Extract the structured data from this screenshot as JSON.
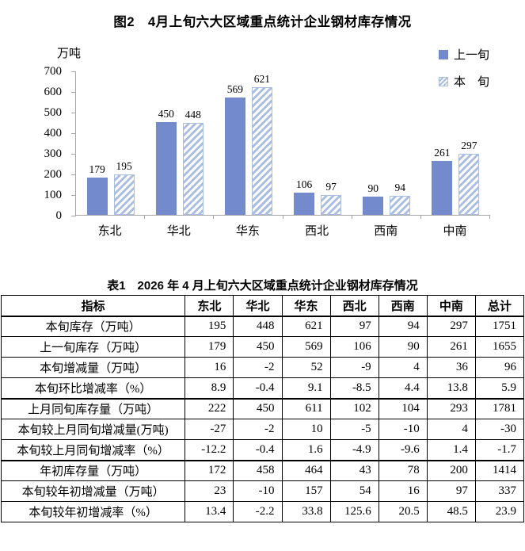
{
  "chart": {
    "title": "图2　4月上旬六大区域重点统计企业钢材库存情况",
    "unit_label": "万吨",
    "axis_color": "#a6a6a6",
    "bar_color": "#738acd",
    "hatch_color": "#a9bde1",
    "legend": [
      {
        "label": "上一旬",
        "swatch": "solid"
      },
      {
        "label": "本　旬",
        "swatch": "hatch"
      }
    ]
  },
  "chart_data": {
    "type": "bar",
    "title": "图2　4月上旬六大区域重点统计企业钢材库存情况",
    "categories": [
      "东北",
      "华北",
      "华东",
      "西北",
      "西南",
      "中南"
    ],
    "series": [
      {
        "name": "上一旬",
        "values": [
          179,
          450,
          569,
          106,
          90,
          261
        ]
      },
      {
        "name": "本旬",
        "values": [
          195,
          448,
          621,
          97,
          94,
          297
        ]
      }
    ],
    "xlabel": "",
    "ylabel": "万吨",
    "ylim": [
      0,
      700
    ],
    "ytick_step": 100,
    "grid": false,
    "legend_position": "top-right",
    "data_labels": true
  },
  "table": {
    "title": "表1　2026 年 4 月上旬六大区域重点统计企业钢材库存情况",
    "columns": [
      "指标",
      "东北",
      "华北",
      "华东",
      "西北",
      "西南",
      "中南",
      "总计"
    ],
    "rows": [
      {
        "label": "本旬库存（万吨）",
        "values": [
          "195",
          "448",
          "621",
          "97",
          "94",
          "297",
          "1751"
        ],
        "section_end": false
      },
      {
        "label": "上一旬库存（万吨）",
        "values": [
          "179",
          "450",
          "569",
          "106",
          "90",
          "261",
          "1655"
        ],
        "section_end": false
      },
      {
        "label": "本旬增减量（万吨）",
        "values": [
          "16",
          "-2",
          "52",
          "-9",
          "4",
          "36",
          "96"
        ],
        "section_end": false
      },
      {
        "label": "本旬环比增减率（%）",
        "values": [
          "8.9",
          "-0.4",
          "9.1",
          "-8.5",
          "4.4",
          "13.8",
          "5.9"
        ],
        "section_end": true
      },
      {
        "label": "上月同旬库存量（万吨）",
        "values": [
          "222",
          "450",
          "611",
          "102",
          "104",
          "293",
          "1781"
        ],
        "section_end": false
      },
      {
        "label": "本旬较上月同旬增减量(万吨)",
        "values": [
          "-27",
          "-2",
          "10",
          "-5",
          "-10",
          "4",
          "-30"
        ],
        "section_end": false
      },
      {
        "label": "本旬较上月同旬增减率（%）",
        "values": [
          "-12.2",
          "-0.4",
          "1.6",
          "-4.9",
          "-9.6",
          "1.4",
          "-1.7"
        ],
        "section_end": true
      },
      {
        "label": "年初库存量（万吨）",
        "values": [
          "172",
          "458",
          "464",
          "43",
          "78",
          "200",
          "1414"
        ],
        "section_end": false
      },
      {
        "label": "本旬较年初增减量（万吨）",
        "values": [
          "23",
          "-10",
          "157",
          "54",
          "16",
          "97",
          "337"
        ],
        "section_end": false
      },
      {
        "label": "本旬较年初增减率（%）",
        "values": [
          "13.4",
          "-2.2",
          "33.8",
          "125.6",
          "20.5",
          "48.5",
          "23.9"
        ],
        "section_end": false
      }
    ]
  }
}
